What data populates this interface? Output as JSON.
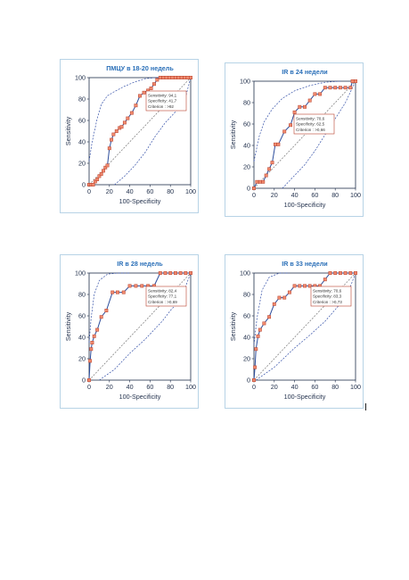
{
  "colors": {
    "roc_line": "#2c4d9c",
    "marker_fill": "#f08a6e",
    "marker_stroke": "#b8402c",
    "ci_line": "#3450a8",
    "diagonal": "#777777",
    "box_border": "#b8402c",
    "title": "#2a6fb8",
    "axis": "#1f2e4a",
    "panel_border": "#b7d3e6"
  },
  "chart_data": [
    {
      "type": "line",
      "title": "ПМЦУ в 18-20 недель",
      "xlabel": "100-Specificity",
      "ylabel": "Sensitivity",
      "xlim": [
        0,
        100
      ],
      "ylim": [
        0,
        100
      ],
      "x_ticks": [
        "0",
        "20",
        "40",
        "60",
        "80",
        "100"
      ],
      "y_ticks": [
        "0",
        "20",
        "40",
        "60",
        "80",
        "100"
      ],
      "annotation": [
        "Sensitivity: 94,1",
        "Specificity: 41,7",
        "Criterion : >92"
      ],
      "roc": {
        "x": [
          0,
          2,
          4,
          6,
          8,
          10,
          12,
          14,
          16,
          18,
          20,
          22,
          24,
          27,
          30,
          32,
          35,
          38,
          42,
          46,
          50,
          54,
          58,
          61,
          64,
          67,
          70,
          73,
          76,
          79,
          82,
          85,
          88,
          91,
          94,
          97,
          100
        ],
        "y": [
          0,
          0,
          0,
          3,
          5,
          8,
          10,
          13,
          16,
          18,
          34,
          42,
          47,
          50,
          53,
          54,
          58,
          62,
          67,
          74,
          83,
          86,
          88,
          90,
          94,
          98,
          100,
          100,
          100,
          100,
          100,
          100,
          100,
          100,
          100,
          100,
          100
        ]
      },
      "ci_upper": {
        "x": [
          0,
          3,
          8,
          12,
          18,
          25,
          35,
          45,
          55,
          65,
          75
        ],
        "y": [
          22,
          40,
          62,
          75,
          83,
          87,
          92,
          96,
          99,
          100,
          100
        ]
      },
      "ci_lower": {
        "x": [
          25,
          35,
          45,
          55,
          65,
          75,
          85,
          95,
          100
        ],
        "y": [
          0,
          8,
          18,
          30,
          45,
          58,
          68,
          82,
          100
        ]
      },
      "series_markers": true
    },
    {
      "type": "line",
      "title": "IR в 24 недели",
      "xlabel": "100-Specificity",
      "ylabel": "Sensitivity",
      "xlim": [
        0,
        100
      ],
      "ylim": [
        0,
        100
      ],
      "x_ticks": [
        "0",
        "20",
        "40",
        "60",
        "80",
        "100"
      ],
      "y_ticks": [
        "0",
        "20",
        "40",
        "60",
        "80",
        "100"
      ],
      "annotation": [
        "Sensitivity: 70,6",
        "Specificity: 62,5",
        "Criterion : >0,66"
      ],
      "roc": {
        "x": [
          0,
          3,
          6,
          9,
          12,
          15,
          18,
          21,
          24,
          30,
          36,
          40,
          45,
          50,
          55,
          60,
          65,
          70,
          75,
          80,
          85,
          90,
          95,
          97,
          100
        ],
        "y": [
          0,
          6,
          6,
          6,
          12,
          18,
          24,
          41,
          41,
          53,
          59,
          71,
          76,
          76,
          82,
          88,
          88,
          94,
          94,
          94,
          94,
          94,
          94,
          100,
          100
        ]
      },
      "ci_upper": {
        "x": [
          0,
          5,
          10,
          18,
          28,
          40,
          55,
          70,
          85
        ],
        "y": [
          25,
          48,
          62,
          74,
          84,
          91,
          96,
          99,
          100
        ]
      },
      "ci_lower": {
        "x": [
          28,
          38,
          50,
          60,
          70,
          80,
          90,
          100
        ],
        "y": [
          0,
          10,
          22,
          35,
          50,
          65,
          80,
          100
        ]
      },
      "series_markers": true
    },
    {
      "type": "line",
      "title": "IR в 28 недель",
      "xlabel": "100-Specificity",
      "ylabel": "Sensitivity",
      "xlim": [
        0,
        100
      ],
      "ylim": [
        0,
        100
      ],
      "x_ticks": [
        "0",
        "20",
        "40",
        "60",
        "80",
        "100"
      ],
      "y_ticks": [
        "0",
        "20",
        "40",
        "60",
        "80",
        "100"
      ],
      "annotation": [
        "Sensitivity: 82,4",
        "Specificity: 77,1",
        "Criterion : >0,69"
      ],
      "roc": {
        "x": [
          0,
          1,
          2,
          3,
          5,
          8,
          12,
          17,
          23,
          28,
          34,
          40,
          46,
          52,
          58,
          64,
          70,
          75,
          80,
          85,
          90,
          95,
          100
        ],
        "y": [
          0,
          18,
          29,
          35,
          41,
          47,
          59,
          65,
          82,
          82,
          82,
          88,
          88,
          88,
          88,
          88,
          100,
          100,
          100,
          100,
          100,
          100,
          100
        ]
      },
      "ci_upper": {
        "x": [
          0,
          2,
          5,
          10,
          18,
          28,
          40
        ],
        "y": [
          35,
          58,
          80,
          93,
          99,
          100,
          100
        ]
      },
      "ci_lower": {
        "x": [
          10,
          25,
          40,
          55,
          65,
          72,
          80,
          90,
          100
        ],
        "y": [
          0,
          10,
          25,
          38,
          48,
          55,
          65,
          75,
          100
        ]
      },
      "series_markers": true
    },
    {
      "type": "line",
      "title": "IR в 33 недели",
      "xlabel": "100-Specificity",
      "ylabel": "Sensitivity",
      "xlim": [
        0,
        100
      ],
      "ylim": [
        0,
        100
      ],
      "x_ticks": [
        "0",
        "20",
        "40",
        "60",
        "80",
        "100"
      ],
      "y_ticks": [
        "0",
        "20",
        "40",
        "60",
        "80",
        "100"
      ],
      "annotation": [
        "Sensitivity: 70,6",
        "Specificity: 83,3",
        "Criterion : >0,73"
      ],
      "roc": {
        "x": [
          0,
          1,
          2,
          4,
          6,
          10,
          15,
          20,
          25,
          30,
          35,
          40,
          45,
          50,
          55,
          60,
          65,
          70,
          75,
          80,
          85,
          90,
          95,
          100
        ],
        "y": [
          0,
          12,
          29,
          41,
          47,
          53,
          59,
          71,
          77,
          77,
          82,
          88,
          88,
          88,
          88,
          88,
          88,
          94,
          100,
          100,
          100,
          100,
          100,
          100
        ]
      },
      "ci_upper": {
        "x": [
          0,
          3,
          8,
          15,
          25,
          35
        ],
        "y": [
          33,
          58,
          84,
          96,
          100,
          100
        ]
      },
      "ci_lower": {
        "x": [
          2,
          20,
          40,
          55,
          70,
          82,
          92,
          100
        ],
        "y": [
          0,
          12,
          30,
          42,
          55,
          68,
          80,
          100
        ]
      },
      "series_markers": true
    }
  ]
}
